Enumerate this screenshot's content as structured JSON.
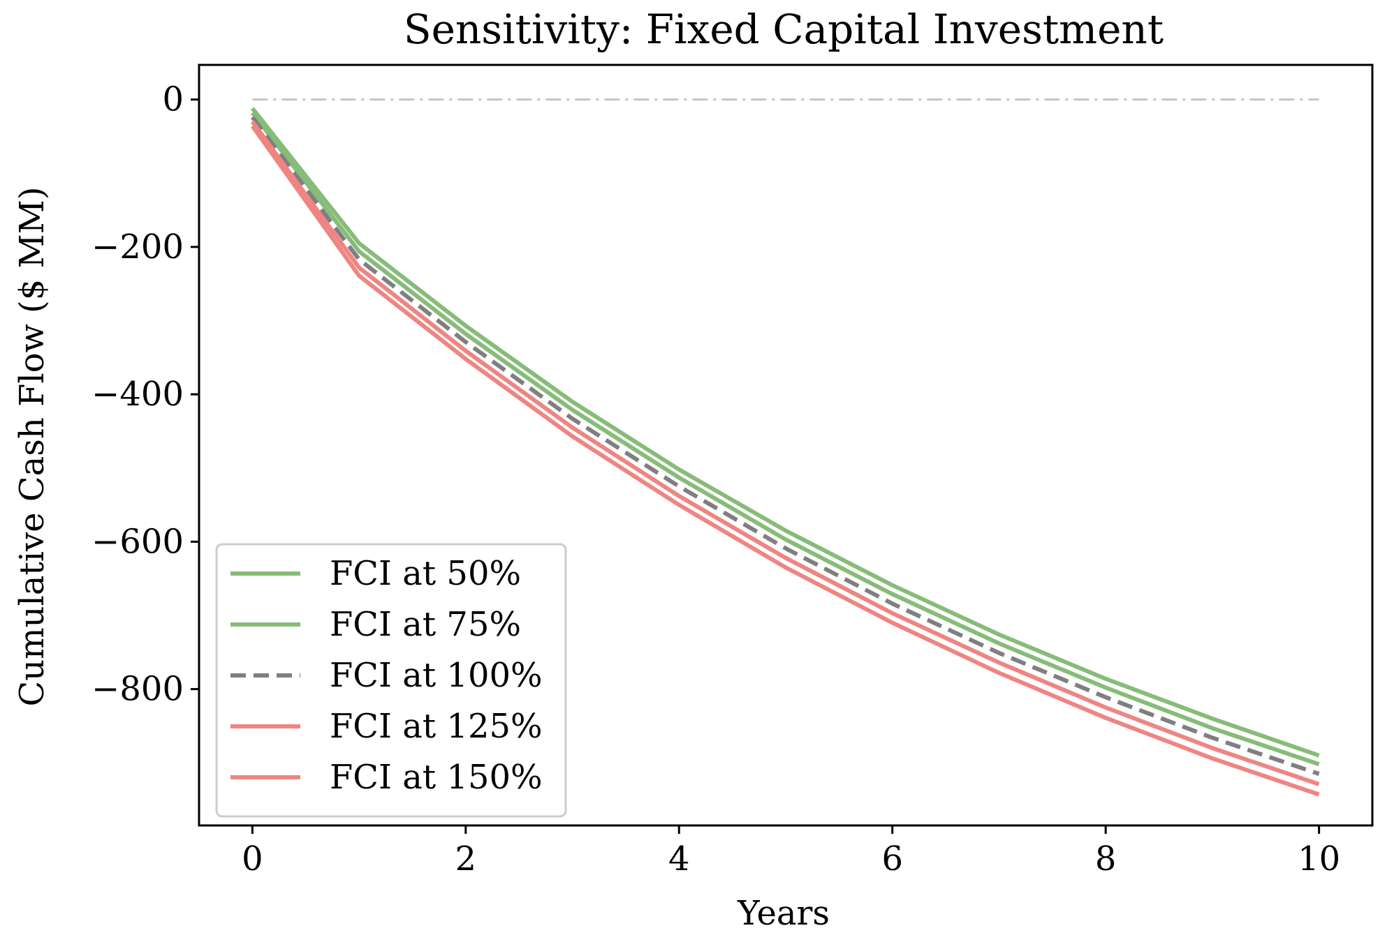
{
  "chart_data": {
    "type": "line",
    "title": "Sensitivity: Fixed Capital Investment",
    "xlabel": "Years",
    "ylabel": "Cumulative Cash Flow ($ MM)",
    "xlim": [
      -0.5,
      10.5
    ],
    "ylim": [
      -985,
      47
    ],
    "xticks": [
      0,
      2,
      4,
      6,
      8,
      10
    ],
    "yticks": [
      0,
      -200,
      -400,
      -600,
      -800
    ],
    "grid": false,
    "legend_position": "lower-left",
    "zero_line": {
      "y": 0,
      "x_from": 0,
      "x_to": 10,
      "color": "#c4c4c4"
    },
    "x": [
      0,
      1,
      2,
      3,
      4,
      5,
      6,
      7,
      8,
      9,
      10
    ],
    "series": [
      {
        "name": "FCI at 50%",
        "color": "#86bc78",
        "dash": "solid",
        "values": [
          -12,
          -195,
          -307,
          -410,
          -502,
          -585,
          -659,
          -726,
          -786,
          -840,
          -890
        ]
      },
      {
        "name": "FCI at 75%",
        "color": "#86bc78",
        "dash": "solid",
        "values": [
          -18,
          -206,
          -318,
          -421,
          -513,
          -597,
          -671,
          -738,
          -798,
          -853,
          -902
        ]
      },
      {
        "name": "FCI at 100%",
        "color": "#7f7f7f",
        "dash": "dashed",
        "values": [
          -24,
          -217,
          -329,
          -433,
          -525,
          -609,
          -684,
          -751,
          -811,
          -866,
          -915
        ]
      },
      {
        "name": "FCI at 125%",
        "color": "#ee8582",
        "dash": "solid",
        "values": [
          -30,
          -228,
          -341,
          -445,
          -538,
          -622,
          -697,
          -764,
          -825,
          -880,
          -929
        ]
      },
      {
        "name": "FCI at 150%",
        "color": "#ee8582",
        "dash": "solid",
        "values": [
          -36,
          -239,
          -352,
          -457,
          -550,
          -635,
          -710,
          -778,
          -839,
          -894,
          -943
        ]
      }
    ]
  }
}
